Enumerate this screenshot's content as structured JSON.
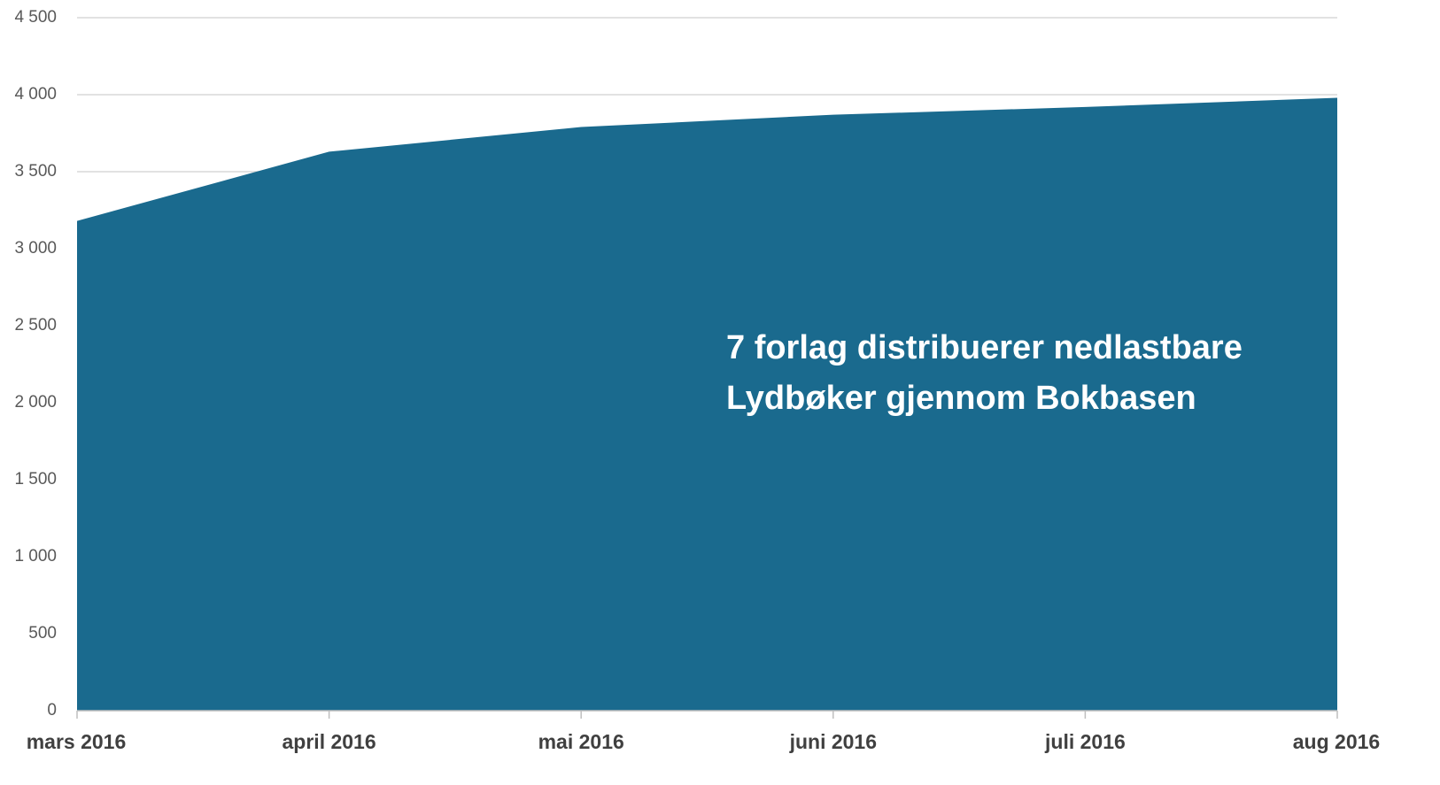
{
  "chart_data": {
    "type": "area",
    "categories": [
      "mars 2016",
      "april 2016",
      "mai 2016",
      "juni 2016",
      "juli 2016",
      "aug 2016"
    ],
    "values": [
      3180,
      3630,
      3790,
      3870,
      3920,
      3980
    ],
    "color": "#1a6a8e",
    "ylim": [
      0,
      4500
    ],
    "yticks": [
      0,
      500,
      {
        "value": 1000,
        "label": "1 000"
      },
      {
        "value": 1500,
        "label": "1 500"
      },
      {
        "value": 2000,
        "label": "2 000"
      },
      {
        "value": 2500,
        "label": "2 500"
      },
      {
        "value": 3000,
        "label": "3 000"
      },
      {
        "value": 3500,
        "label": "3 500"
      },
      {
        "value": 4000,
        "label": "4 000"
      },
      {
        "value": 4500,
        "label": "4 500"
      }
    ],
    "grid": true,
    "annotation": [
      "7 forlag distribuerer nedlastbare",
      "Lydbøker gjennom Bokbasen"
    ]
  }
}
